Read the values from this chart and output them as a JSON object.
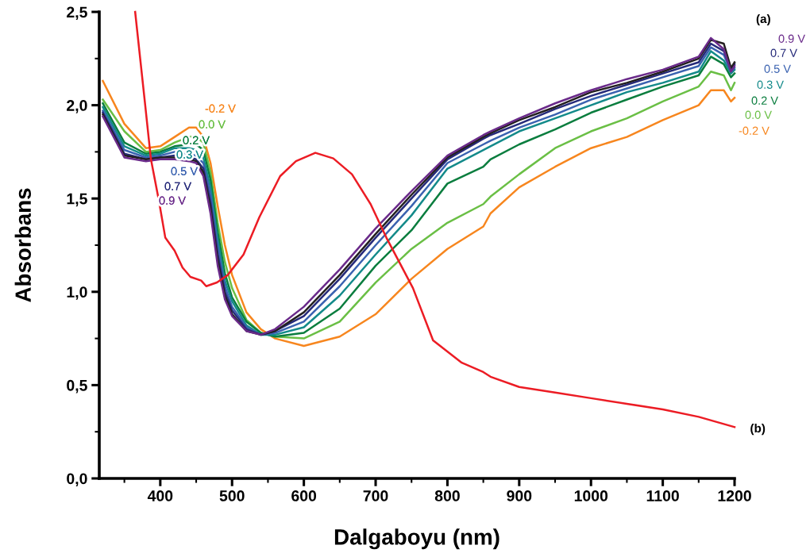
{
  "chart_data": {
    "type": "line",
    "xlabel": "Dalgaboyu (nm)",
    "ylabel": "Absorbans",
    "x": [
      320,
      350,
      380,
      400,
      420,
      440,
      450,
      460,
      470,
      480,
      490,
      500,
      520,
      540,
      560,
      600,
      650,
      700,
      750,
      800,
      850,
      860,
      900,
      950,
      1000,
      1050,
      1100,
      1150,
      1167,
      1185,
      1195,
      1200
    ],
    "series": [
      {
        "name": "-0.2 V",
        "color": "#f7861e",
        "values": [
          2.13,
          1.9,
          1.77,
          1.78,
          1.83,
          1.88,
          1.88,
          1.83,
          1.69,
          1.46,
          1.25,
          1.09,
          0.89,
          0.8,
          0.75,
          0.71,
          0.76,
          0.88,
          1.07,
          1.23,
          1.35,
          1.42,
          1.56,
          1.67,
          1.77,
          1.83,
          1.92,
          2.0,
          2.08,
          2.08,
          2.02,
          2.04
        ]
      },
      {
        "name": "0.0 V",
        "color": "#6abf45",
        "values": [
          2.03,
          1.86,
          1.75,
          1.76,
          1.8,
          1.83,
          1.83,
          1.8,
          1.64,
          1.37,
          1.16,
          1.02,
          0.85,
          0.78,
          0.76,
          0.75,
          0.84,
          1.05,
          1.23,
          1.37,
          1.47,
          1.51,
          1.63,
          1.77,
          1.86,
          1.93,
          2.02,
          2.1,
          2.18,
          2.16,
          2.08,
          2.12
        ]
      },
      {
        "name": "0.2 V",
        "color": "#0a7d3e",
        "values": [
          2.01,
          1.8,
          1.74,
          1.75,
          1.78,
          1.79,
          1.79,
          1.76,
          1.6,
          1.32,
          1.1,
          0.97,
          0.84,
          0.78,
          0.76,
          0.78,
          0.91,
          1.14,
          1.33,
          1.58,
          1.67,
          1.71,
          1.79,
          1.87,
          1.96,
          2.03,
          2.1,
          2.16,
          2.26,
          2.22,
          2.15,
          2.17
        ]
      },
      {
        "name": "0.3 V",
        "color": "#138a8a",
        "values": [
          1.99,
          1.78,
          1.73,
          1.74,
          1.77,
          1.77,
          1.76,
          1.72,
          1.56,
          1.28,
          1.06,
          0.95,
          0.82,
          0.77,
          0.77,
          0.81,
          0.98,
          1.2,
          1.41,
          1.66,
          1.76,
          1.78,
          1.86,
          1.93,
          2.0,
          2.07,
          2.12,
          2.18,
          2.29,
          2.24,
          2.17,
          2.19
        ]
      },
      {
        "name": "0.5 V",
        "color": "#3a62b0",
        "values": [
          1.97,
          1.76,
          1.72,
          1.73,
          1.75,
          1.74,
          1.73,
          1.69,
          1.52,
          1.24,
          1.03,
          0.92,
          0.81,
          0.77,
          0.78,
          0.84,
          1.03,
          1.25,
          1.46,
          1.69,
          1.79,
          1.81,
          1.88,
          1.95,
          2.03,
          2.09,
          2.15,
          2.21,
          2.31,
          2.27,
          2.18,
          2.2
        ]
      },
      {
        "name": "0.7 V",
        "color": "#262a7a",
        "values": [
          1.96,
          1.74,
          1.71,
          1.72,
          1.73,
          1.72,
          1.71,
          1.66,
          1.48,
          1.2,
          1.0,
          0.9,
          0.8,
          0.77,
          0.79,
          0.87,
          1.07,
          1.29,
          1.5,
          1.71,
          1.82,
          1.84,
          1.9,
          1.98,
          2.05,
          2.11,
          2.17,
          2.23,
          2.33,
          2.29,
          2.19,
          2.22
        ]
      },
      {
        "color": "#231f20",
        "values": [
          1.95,
          1.73,
          1.71,
          1.72,
          1.72,
          1.71,
          1.7,
          1.64,
          1.45,
          1.17,
          0.98,
          0.88,
          0.79,
          0.77,
          0.79,
          0.89,
          1.09,
          1.31,
          1.52,
          1.72,
          1.83,
          1.85,
          1.92,
          1.99,
          2.07,
          2.12,
          2.18,
          2.25,
          2.35,
          2.33,
          2.2,
          2.23
        ]
      },
      {
        "name": "0.9 V",
        "color": "#6a2a8a",
        "values": [
          1.94,
          1.72,
          1.7,
          1.71,
          1.71,
          1.7,
          1.69,
          1.62,
          1.42,
          1.14,
          0.96,
          0.87,
          0.79,
          0.77,
          0.8,
          0.92,
          1.12,
          1.34,
          1.54,
          1.73,
          1.84,
          1.86,
          1.93,
          2.01,
          2.08,
          2.14,
          2.19,
          2.26,
          2.36,
          2.3,
          2.18,
          2.21
        ]
      },
      {
        "name": "(b)",
        "color": "#ec1c24",
        "x": [
          365,
          379,
          387,
          398,
          407,
          420,
          431,
          442,
          457,
          464,
          479,
          494,
          516,
          538,
          567,
          589,
          616,
          641,
          667,
          693,
          715,
          752,
          780,
          820,
          850,
          860,
          900,
          950,
          1000,
          1050,
          1100,
          1150,
          1200
        ],
        "values": [
          2.5,
          2.0,
          1.71,
          1.49,
          1.29,
          1.22,
          1.13,
          1.08,
          1.06,
          1.03,
          1.05,
          1.09,
          1.2,
          1.4,
          1.62,
          1.7,
          1.745,
          1.715,
          1.63,
          1.47,
          1.29,
          1.02,
          0.74,
          0.62,
          0.57,
          0.545,
          0.49,
          0.46,
          0.43,
          0.4,
          0.37,
          0.33,
          0.275
        ]
      }
    ],
    "annotations": [
      "(a)"
    ],
    "xlim": [
      315,
      1200
    ],
    "xticks": [
      400,
      500,
      600,
      700,
      800,
      900,
      1000,
      1100,
      1200
    ],
    "ylim": [
      0,
      2.5
    ],
    "yticks": [
      {
        "value": 0,
        "label": "0,0"
      },
      {
        "value": 0.5,
        "label": "0,5"
      },
      {
        "value": 1.0,
        "label": "1,0"
      },
      {
        "value": 1.5,
        "label": "1,5"
      },
      {
        "value": 2.0,
        "label": "2,0"
      },
      {
        "value": 2.5,
        "label": "2,5"
      }
    ],
    "grid": false,
    "legend": false,
    "marker": "none",
    "line_style": "solid"
  }
}
